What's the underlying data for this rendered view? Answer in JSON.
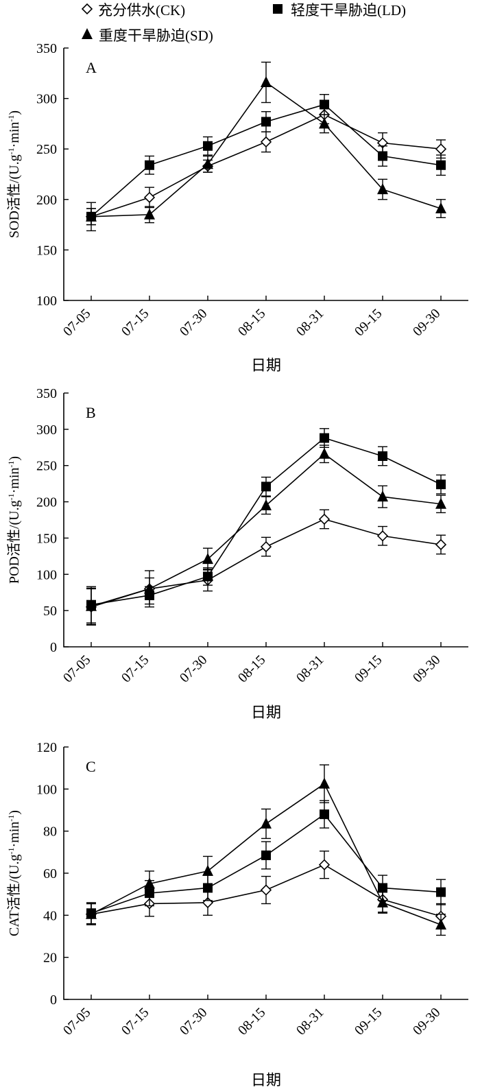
{
  "legend": [
    {
      "marker": "diamond-open",
      "label": "充分供水(CK)"
    },
    {
      "marker": "square-filled",
      "label": "轻度干旱胁迫(LD)"
    },
    {
      "marker": "triangle-filled",
      "label": "重度干旱胁迫(SD)"
    }
  ],
  "chart_data": [
    {
      "type": "line",
      "panel_label": "A",
      "xlabel": "日期",
      "ylabel": "SOD活性/(U.g·min)",
      "ylabel_superscripts": [
        "-1",
        "-1"
      ],
      "categories": [
        "07-05",
        "07-15",
        "07-30",
        "08-15",
        "08-31",
        "09-15",
        "09-30"
      ],
      "ylim": [
        100,
        350
      ],
      "yticks": [
        100,
        150,
        200,
        250,
        300,
        350
      ],
      "series": [
        {
          "name": "充分供水(CK)",
          "marker": "diamond-open",
          "values": [
            183,
            202,
            233,
            257,
            284,
            256,
            250
          ],
          "errors": [
            8,
            10,
            6,
            10,
            9,
            10,
            9
          ]
        },
        {
          "name": "轻度干旱胁迫(LD)",
          "marker": "square-filled",
          "values": [
            183,
            234,
            253,
            277,
            294,
            243,
            234
          ],
          "errors": [
            14,
            9,
            9,
            10,
            10,
            10,
            10
          ]
        },
        {
          "name": "重度干旱胁迫(SD)",
          "marker": "triangle-filled",
          "values": [
            183,
            185,
            235,
            316,
            275,
            210,
            191
          ],
          "errors": [
            8,
            8,
            8,
            20,
            9,
            10,
            9
          ]
        }
      ]
    },
    {
      "type": "line",
      "panel_label": "B",
      "xlabel": "日期",
      "ylabel": "POD活性/(U.g·min)",
      "ylabel_superscripts": [
        "-1",
        "-1"
      ],
      "categories": [
        "07-05",
        "07-15",
        "07-30",
        "08-15",
        "08-31",
        "09-15",
        "09-30"
      ],
      "ylim": [
        0,
        350
      ],
      "yticks": [
        0,
        50,
        100,
        150,
        200,
        250,
        300,
        350
      ],
      "series": [
        {
          "name": "充分供水(CK)",
          "marker": "diamond-open",
          "values": [
            55,
            80,
            92,
            138,
            176,
            153,
            141
          ],
          "errors": [
            25,
            25,
            15,
            13,
            13,
            13,
            13
          ]
        },
        {
          "name": "轻度干旱胁迫(LD)",
          "marker": "square-filled",
          "values": [
            58,
            71,
            97,
            221,
            288,
            263,
            224
          ],
          "errors": [
            25,
            12,
            12,
            13,
            13,
            13,
            13
          ]
        },
        {
          "name": "重度干旱胁迫(SD)",
          "marker": "triangle-filled",
          "values": [
            56,
            80,
            121,
            195,
            266,
            207,
            197
          ],
          "errors": [
            25,
            15,
            15,
            12,
            12,
            15,
            12
          ]
        }
      ]
    },
    {
      "type": "line",
      "panel_label": "C",
      "xlabel": "日期",
      "ylabel": "CAT活性/(U.g·min)",
      "ylabel_superscripts": [
        "-1",
        "-1"
      ],
      "categories": [
        "07-05",
        "07-15",
        "07-30",
        "08-15",
        "08-31",
        "09-15",
        "09-30"
      ],
      "ylim": [
        0,
        120
      ],
      "yticks": [
        0,
        20,
        40,
        60,
        80,
        100,
        120
      ],
      "series": [
        {
          "name": "充分供水(CK)",
          "marker": "diamond-open",
          "values": [
            40.5,
            45.5,
            46,
            52,
            64,
            47.5,
            39.5
          ],
          "errors": [
            5,
            6,
            6,
            6.5,
            6.5,
            6,
            6
          ]
        },
        {
          "name": "轻度干旱胁迫(LD)",
          "marker": "square-filled",
          "values": [
            41,
            50.5,
            53,
            68.5,
            88,
            53,
            51
          ],
          "errors": [
            5,
            6,
            6,
            6.5,
            6.5,
            6,
            6
          ]
        },
        {
          "name": "重度干旱胁迫(SD)",
          "marker": "triangle-filled",
          "values": [
            40.5,
            55,
            61,
            83.5,
            102.5,
            46,
            35.5
          ],
          "errors": [
            5,
            6,
            7,
            7,
            9,
            5,
            5
          ]
        }
      ]
    }
  ]
}
